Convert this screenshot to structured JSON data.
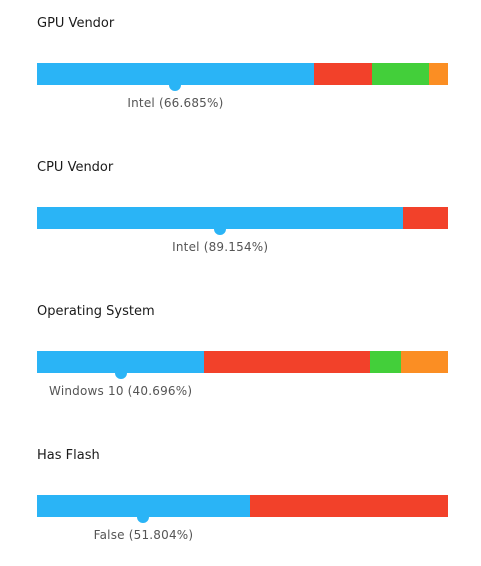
{
  "colors": {
    "blue": "#2ab4f6",
    "red": "#f2412a",
    "green": "#43cf3a",
    "orange": "#fb8e23"
  },
  "sections": [
    {
      "title": "GPU Vendor",
      "label": "Intel (66.685%)",
      "segments": [
        {
          "value": 66.685,
          "color": "#2ab4f6"
        },
        {
          "value": 14.0,
          "color": "#f2412a"
        },
        {
          "value": 13.8,
          "color": "#43cf3a"
        },
        {
          "value": 4.5,
          "color": "#fb8e23"
        }
      ]
    },
    {
      "title": "CPU Vendor",
      "label": "Intel (89.154%)",
      "segments": [
        {
          "value": 89.154,
          "color": "#2ab4f6"
        },
        {
          "value": 10.846,
          "color": "#f2412a"
        }
      ]
    },
    {
      "title": "Operating System",
      "label": "Windows 10 (40.696%)",
      "segments": [
        {
          "value": 40.696,
          "color": "#2ab4f6"
        },
        {
          "value": 40.4,
          "color": "#f2412a"
        },
        {
          "value": 7.4,
          "color": "#43cf3a"
        },
        {
          "value": 11.5,
          "color": "#fb8e23"
        }
      ]
    },
    {
      "title": "Has Flash",
      "label": "False (51.804%)",
      "segments": [
        {
          "value": 51.804,
          "color": "#2ab4f6"
        },
        {
          "value": 48.196,
          "color": "#f2412a"
        }
      ]
    }
  ]
}
